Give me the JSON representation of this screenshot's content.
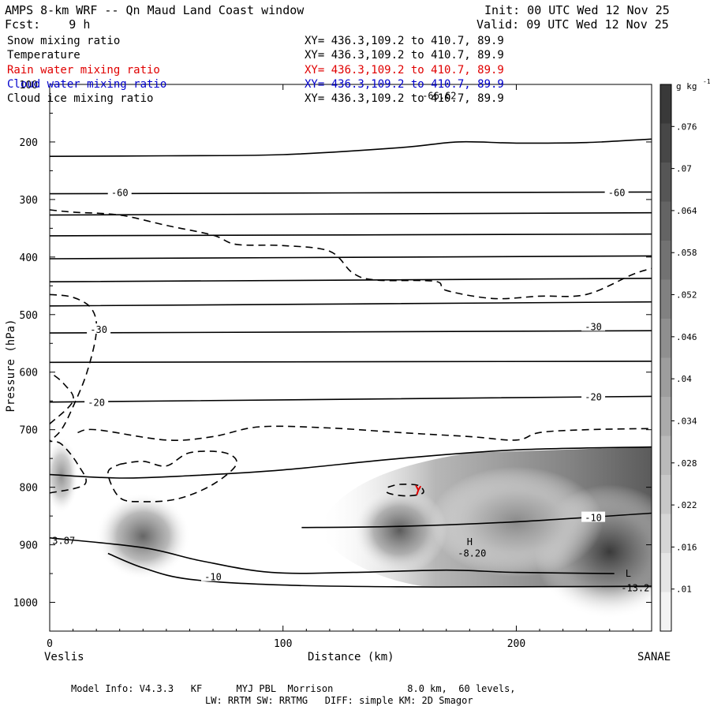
{
  "header": {
    "title": "AMPS 8-km WRF -- Qn Maud Land Coast window",
    "init": "Init: 00 UTC Wed 12 Nov 25",
    "fcst": "Fcst:    9 h",
    "valid": "Valid: 09 UTC Wed 12 Nov 25"
  },
  "legend": [
    {
      "label": "Snow mixing ratio",
      "xy": "XY= 436.3,109.2 to 410.7, 89.9",
      "color": "#000000"
    },
    {
      "label": "Temperature",
      "xy": "XY= 436.3,109.2 to 410.7, 89.9",
      "color": "#000000"
    },
    {
      "label": "Rain water mixing ratio",
      "xy": "XY= 436.3,109.2 to 410.7, 89.9",
      "color": "#e00000"
    },
    {
      "label": "Cloud water mixing ratio",
      "xy": "XY= 436.3,109.2 to 410.7, 89.9",
      "color": "#0000cc"
    },
    {
      "label": "Cloud ice mixing ratio",
      "xy": "XY= 436.3,109.2 to 410.7, 89.9",
      "color": "#000000"
    }
  ],
  "footer": {
    "line1": "Model Info: V4.3.3   KF      MYJ PBL  Morrison             8.0 km,  60 levels,",
    "line2": "LW: RRTM SW: RRTMG   DIFF: simple KM: 2D Smagor"
  },
  "chart_data": {
    "type": "cross-section",
    "xlabel": "Distance (km)",
    "ylabel": "Pressure (hPa)",
    "xlim": [
      0,
      258
    ],
    "ylim": [
      1050,
      100
    ],
    "x_ticks": [
      0,
      100,
      200
    ],
    "y_ticks": [
      100,
      200,
      300,
      400,
      500,
      600,
      700,
      800,
      900,
      1000
    ],
    "endpoints": {
      "left": "Veslis",
      "right": "SANAE"
    },
    "colorbar": {
      "units": "g kg",
      "units_exp": "-1",
      "ticks": [
        ".01",
        ".016",
        ".022",
        ".028",
        ".034",
        ".04",
        ".046",
        ".052",
        ".058",
        ".064",
        ".07",
        ".076"
      ],
      "tick_values": [
        0.01,
        0.016,
        0.022,
        0.028,
        0.034,
        0.04,
        0.046,
        0.052,
        0.058,
        0.064,
        0.07,
        0.076
      ],
      "range": [
        0.004,
        0.082
      ]
    },
    "temperature_isotherms": [
      {
        "points": [
          [
            0,
            225
          ],
          [
            50,
            224
          ],
          [
            100,
            222
          ],
          [
            150,
            210
          ],
          [
            175,
            200
          ],
          [
            200,
            202
          ],
          [
            230,
            201
          ],
          [
            258,
            195
          ]
        ]
      },
      {
        "points": [
          [
            0,
            290
          ],
          [
            258,
            287
          ]
        ],
        "label": "-60"
      },
      {
        "points": [
          [
            0,
            327
          ],
          [
            258,
            323
          ]
        ]
      },
      {
        "points": [
          [
            0,
            363
          ],
          [
            258,
            360
          ]
        ]
      },
      {
        "points": [
          [
            0,
            403
          ],
          [
            258,
            398
          ]
        ]
      },
      {
        "points": [
          [
            0,
            443
          ],
          [
            258,
            437
          ]
        ]
      },
      {
        "points": [
          [
            0,
            485
          ],
          [
            258,
            478
          ]
        ]
      },
      {
        "points": [
          [
            0,
            532
          ],
          [
            258,
            528
          ]
        ],
        "label": "-30"
      },
      {
        "points": [
          [
            0,
            583
          ],
          [
            258,
            581
          ]
        ]
      },
      {
        "points": [
          [
            0,
            652
          ],
          [
            258,
            642
          ]
        ],
        "label": "-20"
      },
      {
        "points": [
          [
            0,
            778
          ],
          [
            30,
            784
          ],
          [
            60,
            780
          ],
          [
            100,
            770
          ],
          [
            150,
            750
          ],
          [
            200,
            735
          ],
          [
            258,
            730
          ]
        ]
      },
      {
        "points": [
          [
            108,
            870
          ],
          [
            150,
            868
          ],
          [
            200,
            860
          ],
          [
            258,
            845
          ]
        ],
        "label": "-10"
      },
      {
        "points": [
          [
            0,
            888
          ],
          [
            40,
            905
          ],
          [
            65,
            928
          ],
          [
            95,
            948
          ],
          [
            130,
            948
          ],
          [
            170,
            944
          ],
          [
            200,
            948
          ],
          [
            242,
            950
          ]
        ]
      },
      {
        "points": [
          [
            25,
            915
          ],
          [
            40,
            940
          ],
          [
            60,
            960
          ],
          [
            100,
            970
          ],
          [
            150,
            973
          ],
          [
            200,
            973
          ],
          [
            258,
            972
          ]
        ]
      }
    ],
    "isotherm_labels": [
      {
        "text": "-60",
        "x": 30,
        "p": 287
      },
      {
        "text": "-60",
        "x": 243,
        "p": 287
      },
      {
        "text": "-30",
        "x": 21,
        "p": 525
      },
      {
        "text": "-30",
        "x": 233,
        "p": 520
      },
      {
        "text": "-20",
        "x": 20,
        "p": 652
      },
      {
        "text": "-20",
        "x": 233,
        "p": 642
      },
      {
        "text": "-10",
        "x": 233,
        "p": 852
      },
      {
        "text": "-10",
        "x": 70,
        "p": 955
      }
    ],
    "cloud_ice_contours": [
      {
        "points": [
          [
            0,
            318
          ],
          [
            10,
            322
          ],
          [
            30,
            327
          ],
          [
            50,
            345
          ],
          [
            70,
            362
          ],
          [
            80,
            378
          ],
          [
            100,
            380
          ],
          [
            120,
            390
          ],
          [
            130,
            428
          ],
          [
            140,
            440
          ],
          [
            165,
            442
          ],
          [
            170,
            458
          ],
          [
            190,
            472
          ],
          [
            210,
            468
          ],
          [
            230,
            465
          ],
          [
            250,
            430
          ],
          [
            258,
            420
          ]
        ]
      },
      {
        "points": [
          [
            0,
            465
          ],
          [
            10,
            470
          ],
          [
            18,
            490
          ],
          [
            20,
            530
          ],
          [
            16,
            600
          ],
          [
            10,
            660
          ],
          [
            5,
            700
          ],
          [
            0,
            720
          ]
        ]
      },
      {
        "points": [
          [
            0,
            690
          ],
          [
            10,
            650
          ],
          [
            6,
            620
          ],
          [
            0,
            600
          ]
        ]
      },
      {
        "points": [
          [
            12,
            705
          ],
          [
            20,
            700
          ],
          [
            50,
            718
          ],
          [
            70,
            712
          ],
          [
            90,
            695
          ],
          [
            120,
            697
          ],
          [
            150,
            705
          ],
          [
            180,
            712
          ],
          [
            200,
            718
          ],
          [
            210,
            705
          ],
          [
            230,
            700
          ],
          [
            258,
            698
          ]
        ]
      },
      {
        "points": [
          [
            30,
            760
          ],
          [
            40,
            755
          ],
          [
            50,
            763
          ],
          [
            60,
            740
          ],
          [
            75,
            740
          ],
          [
            80,
            760
          ],
          [
            70,
            795
          ],
          [
            55,
            820
          ],
          [
            40,
            825
          ],
          [
            30,
            818
          ],
          [
            25,
            775
          ],
          [
            30,
            760
          ]
        ]
      },
      {
        "points": [
          [
            0,
            810
          ],
          [
            15,
            795
          ],
          [
            12,
            760
          ],
          [
            5,
            725
          ],
          [
            0,
            720
          ]
        ]
      },
      {
        "points": [
          [
            145,
            800
          ],
          [
            150,
            795
          ],
          [
            158,
            797
          ],
          [
            160,
            810
          ],
          [
            153,
            815
          ],
          [
            145,
            810
          ],
          [
            145,
            800
          ]
        ]
      }
    ],
    "rain_mark": {
      "x": 158,
      "p": 805
    },
    "snow_blobs": [
      {
        "x": 40,
        "p": 885,
        "value": 0.062
      },
      {
        "x": 150,
        "p": 875,
        "value": 0.066
      },
      {
        "x": 240,
        "p": 912,
        "value": 0.079
      },
      {
        "x": 200,
        "p": 860,
        "value": 0.048
      },
      {
        "x": 5,
        "p": 780,
        "value": 0.045
      }
    ],
    "annotations": [
      {
        "text": "-66.62",
        "x": 167,
        "p": 120
      },
      {
        "text": "H",
        "x": 180,
        "p": 895
      },
      {
        "text": "-8.20",
        "x": 181,
        "p": 915
      },
      {
        "text": "L",
        "x": 248,
        "p": 950
      },
      {
        "text": "-13.2",
        "x": 251,
        "p": 975
      },
      {
        "text": "3.87",
        "x": 6,
        "p": 893
      }
    ]
  }
}
